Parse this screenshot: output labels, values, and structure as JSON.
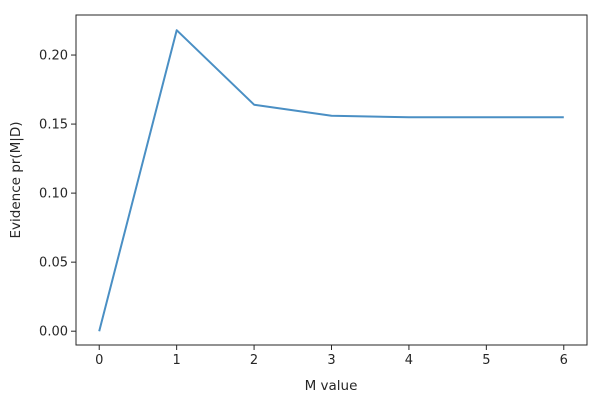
{
  "chart_data": {
    "type": "line",
    "title": "",
    "xlabel": "M value",
    "ylabel": "Evidence pr(M|D)",
    "xlim": [
      -0.3,
      6.3
    ],
    "ylim": [
      -0.01,
      0.229
    ],
    "x_ticks": [
      0,
      1,
      2,
      3,
      4,
      5,
      6
    ],
    "y_ticks": [
      0.0,
      0.05,
      0.1,
      0.15,
      0.2
    ],
    "y_tick_labels": [
      "0.00",
      "0.05",
      "0.10",
      "0.15",
      "0.20"
    ],
    "grid": false,
    "series": [
      {
        "color": "#4a8fc4",
        "x": [
          0,
          1,
          2,
          3,
          4,
          5,
          6
        ],
        "y": [
          0.0,
          0.218,
          0.164,
          0.156,
          0.155,
          0.155,
          0.155
        ]
      }
    ]
  }
}
